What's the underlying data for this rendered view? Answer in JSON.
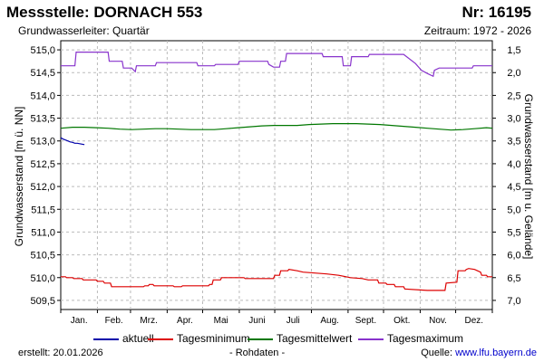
{
  "header": {
    "title": "Messstelle: DORNACH 553",
    "number": "Nr: 16195",
    "aquifer": "Grundwasserleiter: Quartär",
    "period": "Zeitraum: 1972 - 2026"
  },
  "footer": {
    "created": "erstellt:  20.01.2026",
    "rawdata": "- Rohdaten -",
    "source_label": "Quelle: ",
    "source_url": "www.lfu.bayern.de"
  },
  "chart_data": {
    "type": "line",
    "ylabel": "Grundwasserstand [m ü. NN]",
    "y2label": "Grundwasserstand [m u. Gelände]",
    "ylim": [
      509.3,
      515.2
    ],
    "y2lim": [
      7.2,
      1.3
    ],
    "y_ticks": [
      "515,0",
      "514,5",
      "514,0",
      "513,5",
      "513,0",
      "512,5",
      "512,0",
      "511,5",
      "511,0",
      "510,5",
      "510,0",
      "509,5"
    ],
    "y_tick_values": [
      515.0,
      514.5,
      514.0,
      513.5,
      513.0,
      512.5,
      512.0,
      511.5,
      511.0,
      510.5,
      510.0,
      509.5
    ],
    "y2_ticks": [
      "1,5",
      "2,0",
      "2,5",
      "3,0",
      "3,5",
      "4,0",
      "4,5",
      "5,0",
      "5,5",
      "6,0",
      "6,5",
      "7,0"
    ],
    "y2_tick_values": [
      1.5,
      2.0,
      2.5,
      3.0,
      3.5,
      4.0,
      4.5,
      5.0,
      5.5,
      6.0,
      6.5,
      7.0
    ],
    "x_ticks": [
      "Jan.",
      "Feb.",
      "Mrz.",
      "Apr.",
      "Mai",
      "Juni",
      "Juli",
      "Aug.",
      "Sept.",
      "Okt.",
      "Nov.",
      "Dez."
    ],
    "xlim": [
      0,
      365
    ],
    "grid": true,
    "legend_position": "bottom",
    "series": [
      {
        "name": "aktuell",
        "color": "#0000aa",
        "x": [
          0,
          2,
          4,
          6,
          8,
          10,
          12,
          14,
          16,
          18,
          20
        ],
        "y": [
          513.07,
          513.04,
          513.02,
          513.0,
          512.98,
          512.97,
          512.95,
          512.95,
          512.94,
          512.93,
          512.92
        ]
      },
      {
        "name": "Tagesminimum",
        "color": "#dd0000",
        "x": [
          0,
          4,
          5,
          10,
          11,
          18,
          19,
          30,
          31,
          36,
          37,
          42,
          43,
          70,
          71,
          74,
          75,
          78,
          79,
          95,
          96,
          102,
          103,
          125,
          126,
          128,
          129,
          135,
          136,
          155,
          156,
          180,
          181,
          185,
          186,
          192,
          193,
          200,
          205,
          215,
          225,
          235,
          245,
          255,
          260,
          268,
          269,
          275,
          276,
          282,
          283,
          290,
          291,
          310,
          311,
          325,
          326,
          335,
          336,
          342,
          343,
          345,
          350,
          355,
          356,
          360,
          361,
          365
        ],
        "y": [
          510.02,
          510.02,
          510.0,
          510.0,
          509.98,
          509.98,
          509.95,
          509.95,
          509.92,
          509.92,
          509.88,
          509.88,
          509.8,
          509.8,
          509.82,
          509.82,
          509.85,
          509.85,
          509.82,
          509.82,
          509.8,
          509.8,
          509.82,
          509.82,
          509.85,
          509.85,
          509.95,
          509.95,
          510.0,
          510.0,
          509.98,
          509.98,
          510.05,
          510.05,
          510.15,
          510.15,
          510.18,
          510.15,
          510.12,
          510.1,
          510.08,
          510.05,
          510.0,
          509.98,
          509.95,
          509.95,
          509.88,
          509.88,
          509.85,
          509.85,
          509.8,
          509.8,
          509.75,
          509.72,
          509.72,
          509.72,
          509.88,
          509.9,
          510.15,
          510.15,
          510.18,
          510.2,
          510.18,
          510.12,
          510.05,
          510.05,
          510.02,
          510.02
        ]
      },
      {
        "name": "Tagesmittelwert",
        "color": "#007700",
        "x": [
          0,
          10,
          20,
          30,
          40,
          50,
          60,
          70,
          80,
          90,
          100,
          110,
          120,
          130,
          140,
          150,
          160,
          170,
          180,
          190,
          200,
          210,
          220,
          230,
          240,
          250,
          260,
          270,
          280,
          290,
          300,
          310,
          320,
          330,
          340,
          350,
          360,
          365
        ],
        "y": [
          513.28,
          513.3,
          513.3,
          513.29,
          513.28,
          513.26,
          513.25,
          513.26,
          513.27,
          513.27,
          513.26,
          513.25,
          513.25,
          513.25,
          513.27,
          513.29,
          513.31,
          513.33,
          513.34,
          513.34,
          513.34,
          513.36,
          513.37,
          513.38,
          513.38,
          513.38,
          513.37,
          513.36,
          513.34,
          513.32,
          513.3,
          513.28,
          513.26,
          513.24,
          513.25,
          513.27,
          513.29,
          513.28
        ]
      },
      {
        "name": "Tagesmaximum",
        "color": "#8833cc",
        "x": [
          0,
          12,
          13,
          40,
          41,
          52,
          53,
          60,
          63,
          64,
          80,
          81,
          115,
          116,
          130,
          131,
          150,
          151,
          175,
          176,
          180,
          185,
          186,
          190,
          191,
          221,
          222,
          238,
          239,
          245,
          246,
          260,
          261,
          290,
          300,
          305,
          310,
          315,
          316,
          320,
          330,
          340,
          348,
          349,
          365
        ],
        "y": [
          514.65,
          514.65,
          514.95,
          514.95,
          514.75,
          514.75,
          514.6,
          514.6,
          514.52,
          514.65,
          514.65,
          514.72,
          514.72,
          514.65,
          514.65,
          514.68,
          514.68,
          514.75,
          514.75,
          514.68,
          514.62,
          514.62,
          514.75,
          514.75,
          514.92,
          514.92,
          514.85,
          514.85,
          514.65,
          514.65,
          514.85,
          514.85,
          514.9,
          514.9,
          514.7,
          514.55,
          514.48,
          514.42,
          514.55,
          514.6,
          514.6,
          514.6,
          514.6,
          514.65,
          514.65
        ]
      }
    ]
  }
}
